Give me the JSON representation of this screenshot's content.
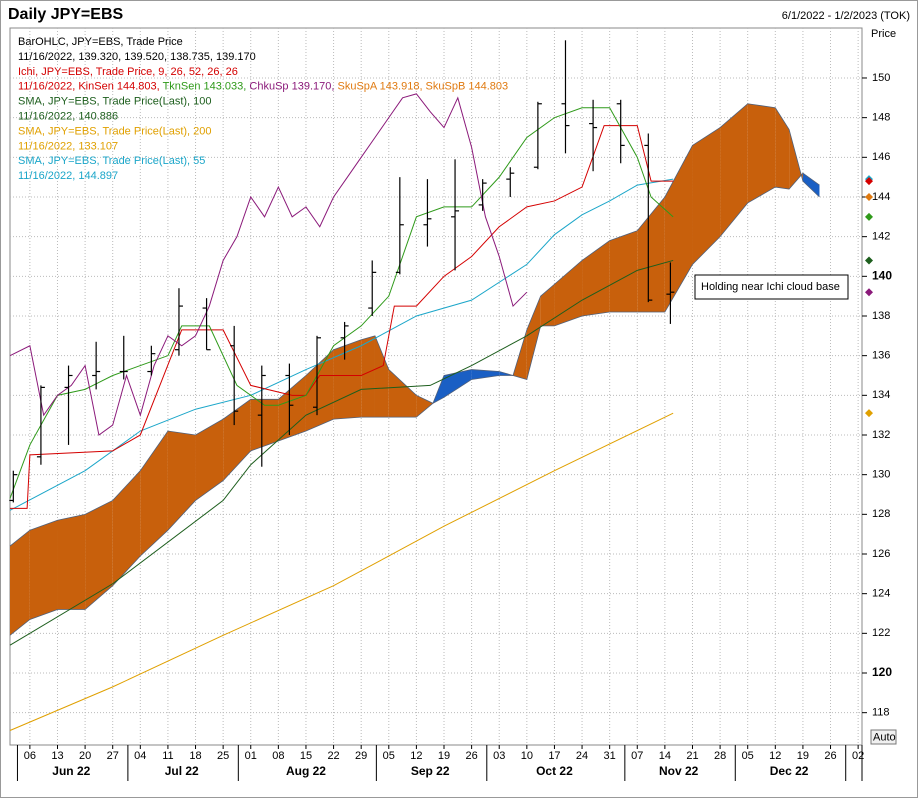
{
  "chart_data": {
    "type": "ohlc",
    "title": "Daily JPY=EBS",
    "date_range": "6/1/2022 - 1/2/2023 (TOK)",
    "y_axis_label": "Price",
    "auto_button": "Auto",
    "annotation": "Holding near Ichi cloud base",
    "grid": true,
    "xlim": [
      -0.72,
      30.14
    ],
    "xticks": [
      {
        "value": 0,
        "label": "06"
      },
      {
        "value": 1,
        "label": "13"
      },
      {
        "value": 2,
        "label": "20"
      },
      {
        "value": 3,
        "label": "27"
      },
      {
        "value": 4,
        "label": "04"
      },
      {
        "value": 5,
        "label": "11"
      },
      {
        "value": 6,
        "label": "18"
      },
      {
        "value": 7,
        "label": "25"
      },
      {
        "value": 8,
        "label": "01"
      },
      {
        "value": 9,
        "label": "08"
      },
      {
        "value": 10,
        "label": "15"
      },
      {
        "value": 11,
        "label": "22"
      },
      {
        "value": 12,
        "label": "29"
      },
      {
        "value": 13,
        "label": "05"
      },
      {
        "value": 14,
        "label": "12"
      },
      {
        "value": 15,
        "label": "19"
      },
      {
        "value": 16,
        "label": "26"
      },
      {
        "value": 17,
        "label": "03"
      },
      {
        "value": 18,
        "label": "10"
      },
      {
        "value": 19,
        "label": "17"
      },
      {
        "value": 20,
        "label": "24"
      },
      {
        "value": 21,
        "label": "31"
      },
      {
        "value": 22,
        "label": "07"
      },
      {
        "value": 23,
        "label": "14"
      },
      {
        "value": 24,
        "label": "21"
      },
      {
        "value": 25,
        "label": "28"
      },
      {
        "value": 26,
        "label": "05"
      },
      {
        "value": 27,
        "label": "12"
      },
      {
        "value": 28,
        "label": "19"
      },
      {
        "value": 29,
        "label": "26"
      },
      {
        "value": 30,
        "label": "02"
      }
    ],
    "months": [
      "Jun 22",
      "Jul 22",
      "Aug 22",
      "Sep 22",
      "Oct 22",
      "Nov 22",
      "Dec 22"
    ],
    "ylim": [
      116.37,
      152.52
    ],
    "yticks": [
      118,
      120,
      122,
      124,
      126,
      128,
      130,
      132,
      134,
      136,
      138,
      140,
      142,
      144,
      146,
      148,
      150
    ],
    "legend": [
      [
        {
          "text": "BarOHLC, JPY=EBS, Trade Price",
          "color": "#000000"
        }
      ],
      [
        {
          "text": "11/16/2022, 139.320, 139.520, 138.735, 139.170",
          "color": "#000000"
        }
      ],
      [
        {
          "text": "Ichi, JPY=EBS, Trade Price,  9, 26, 52, 26, 26",
          "color": "#d40000"
        }
      ],
      [
        {
          "text": "11/16/2022, KinSen 144.803, ",
          "color": "#d40000"
        },
        {
          "text": "TknSen 143.033, ",
          "color": "#2f9a1a"
        },
        {
          "text": "ChkuSp 139.170, ",
          "color": "#8b1a7a"
        },
        {
          "text": "SkuSpA 143.918, SkuSpB 144.803",
          "color": "#e07a10"
        }
      ],
      [
        {
          "text": "SMA, JPY=EBS, Trade Price(Last),  100",
          "color": "#1d5e1d"
        }
      ],
      [
        {
          "text": "11/16/2022, 140.886",
          "color": "#1d5e1d"
        }
      ],
      [
        {
          "text": "SMA, JPY=EBS, Trade Price(Last),  200",
          "color": "#e0a000"
        }
      ],
      [
        {
          "text": "11/16/2022, 133.107",
          "color": "#e0a000"
        }
      ],
      [
        {
          "text": "SMA, JPY=EBS, Trade Price(Last),  55",
          "color": "#1ba6c9"
        }
      ],
      [
        {
          "text": "11/16/2022, 144.897",
          "color": "#1ba6c9"
        }
      ]
    ],
    "ohlc": {
      "color": "#000000",
      "x": [
        -0.6,
        0.4,
        1.4,
        2.4,
        3.4,
        4.4,
        5.4,
        6.4,
        7.4,
        8.4,
        9.4,
        10.4,
        11.4,
        12.4,
        13.4,
        14.4,
        15.4,
        16.4,
        17.4,
        18.4,
        19.4,
        20.4,
        21.4,
        22.4,
        23.2
      ],
      "open": [
        128.7,
        130.9,
        134.4,
        135.0,
        135.2,
        135.2,
        136.3,
        138.4,
        136.5,
        133.0,
        135.0,
        133.4,
        136.9,
        138.4,
        140.2,
        142.6,
        143.0,
        143.6,
        144.9,
        145.5,
        148.7,
        147.7,
        148.7,
        146.6,
        139.1
      ],
      "high": [
        130.2,
        134.5,
        135.5,
        136.7,
        137.0,
        136.5,
        139.4,
        138.9,
        137.5,
        135.5,
        135.6,
        137.0,
        137.7,
        140.8,
        145.0,
        144.9,
        145.9,
        144.9,
        145.5,
        148.8,
        151.9,
        148.9,
        148.9,
        147.2,
        140.7
      ],
      "low": [
        128.6,
        130.5,
        131.5,
        134.3,
        134.8,
        135.0,
        136.0,
        136.3,
        132.5,
        130.4,
        132.0,
        133.0,
        135.8,
        138.0,
        140.1,
        141.5,
        140.3,
        143.3,
        144.0,
        145.4,
        146.2,
        145.3,
        145.7,
        138.7,
        137.6
      ],
      "close": [
        130.0,
        134.4,
        135.0,
        135.2,
        135.2,
        136.1,
        138.5,
        136.3,
        133.2,
        135.0,
        133.5,
        136.9,
        137.5,
        140.2,
        142.6,
        142.9,
        143.3,
        144.7,
        145.2,
        148.7,
        147.6,
        147.5,
        146.6,
        138.8,
        139.2
      ]
    },
    "cloud": {
      "bear_color": "#c8600c",
      "bull_color": "#1a5fc4",
      "edge_color": "#50607a",
      "x": [
        -0.72,
        0,
        1,
        2,
        3,
        4,
        5,
        6,
        7,
        8,
        9,
        10,
        11,
        12,
        12.5,
        13,
        14,
        14.6,
        15,
        16,
        17,
        17.5,
        18,
        18.5,
        19,
        20,
        21,
        22,
        23,
        24,
        25,
        26,
        27,
        27.5,
        28,
        28.6
      ],
      "span_a": [
        121.9,
        122.7,
        123.2,
        123.2,
        124.4,
        125.9,
        127.2,
        128.7,
        129.7,
        131.2,
        131.7,
        132.2,
        132.8,
        132.9,
        132.9,
        132.9,
        132.9,
        133.6,
        135.0,
        135.3,
        135.2,
        135.0,
        134.8,
        137.5,
        137.5,
        138.0,
        138.2,
        138.2,
        138.2,
        140.6,
        142.0,
        143.7,
        144.5,
        144.4,
        145.2,
        144.6
      ],
      "span_b": [
        126.4,
        127.2,
        127.7,
        128.0,
        128.7,
        130.2,
        132.2,
        132.0,
        132.8,
        133.8,
        133.8,
        135.0,
        136.3,
        136.8,
        137.0,
        135.3,
        134.0,
        133.6,
        133.9,
        134.8,
        135.0,
        135.0,
        137.3,
        139.0,
        139.6,
        140.8,
        141.8,
        142.3,
        144.0,
        146.6,
        147.5,
        148.7,
        148.5,
        147.4,
        144.8,
        144.0
      ],
      "marker_color": "#e07a10"
    },
    "series": [
      {
        "color": "#e0a000",
        "width": 1,
        "x": [
          -0.72,
          3,
          7,
          11,
          15,
          19,
          23.3
        ],
        "values": [
          117.1,
          119.3,
          121.9,
          124.4,
          127.4,
          130.2,
          133.1
        ]
      },
      {
        "color": "#1d5e1d",
        "width": 1,
        "x": [
          -0.72,
          3,
          7,
          8,
          10,
          12,
          14.5,
          16,
          18,
          20,
          22,
          23.3
        ],
        "values": [
          121.4,
          124.5,
          128.7,
          130.5,
          133.0,
          134.3,
          134.5,
          135.5,
          137.0,
          138.8,
          140.3,
          140.8
        ]
      },
      {
        "color": "#1ba6c9",
        "width": 1,
        "x": [
          -0.72,
          2,
          4,
          6,
          8,
          10,
          12,
          14,
          16,
          18,
          19,
          20,
          21,
          22,
          23.3
        ],
        "values": [
          128.2,
          130.2,
          132.2,
          133.3,
          134.0,
          135.3,
          136.5,
          138.0,
          138.8,
          140.6,
          142.1,
          143.1,
          143.8,
          144.6,
          144.9
        ]
      },
      {
        "color": "#d40000",
        "width": 1,
        "x": [
          -0.72,
          -0.1,
          0,
          3,
          4,
          5.5,
          7,
          8,
          9.5,
          10,
          10.5,
          12,
          12.8,
          13.2,
          14,
          15,
          16,
          17,
          18,
          19,
          20,
          20.8,
          22,
          22.5,
          23.3
        ],
        "values": [
          128.3,
          128.3,
          131.0,
          131.2,
          132.0,
          137.3,
          137.3,
          134.5,
          134.0,
          134.0,
          135.0,
          135.0,
          135.5,
          138.5,
          138.5,
          140.0,
          141.0,
          142.5,
          143.5,
          143.8,
          144.5,
          147.6,
          147.6,
          144.8,
          144.8
        ]
      },
      {
        "color": "#2f9a1a",
        "width": 1,
        "x": [
          -0.72,
          0,
          1,
          2,
          3,
          4,
          5,
          5.5,
          6.5,
          7.5,
          8.5,
          9,
          10,
          11,
          12,
          13,
          13.5,
          14,
          15,
          16,
          17,
          18,
          19,
          20,
          21,
          22,
          22.5,
          23.3
        ],
        "values": [
          128.8,
          131.5,
          134.0,
          134.3,
          135.0,
          135.5,
          136.0,
          137.5,
          137.5,
          134.5,
          133.5,
          133.5,
          134.0,
          136.5,
          137.5,
          139.0,
          141.0,
          143.0,
          143.5,
          143.5,
          145.0,
          147.0,
          148.0,
          148.5,
          148.5,
          146.0,
          144.0,
          143.0
        ]
      },
      {
        "color": "#8b1a7a",
        "width": 1,
        "x": [
          -0.72,
          0,
          0.5,
          1,
          1.5,
          2,
          2.5,
          3,
          3.5,
          4,
          4.5,
          5,
          5.5,
          6,
          6.5,
          7,
          7.5,
          8,
          8.5,
          9,
          9.5,
          10,
          10.5,
          11,
          11.5,
          12,
          12.5,
          13,
          13.5,
          14,
          14.5,
          15,
          15.5,
          16,
          16.5,
          17,
          17.5,
          18
        ],
        "values": [
          136.0,
          136.5,
          133.0,
          134.0,
          134.5,
          135.5,
          132.0,
          132.5,
          135.0,
          133.0,
          135.5,
          137.0,
          136.5,
          137.0,
          138.5,
          140.8,
          142.0,
          144.0,
          143.0,
          144.5,
          143.0,
          143.5,
          142.5,
          144.0,
          145.0,
          146.0,
          147.0,
          148.0,
          149.0,
          149.2,
          148.3,
          147.5,
          149.0,
          146.5,
          143.0,
          141.0,
          138.5,
          139.2
        ]
      }
    ]
  }
}
